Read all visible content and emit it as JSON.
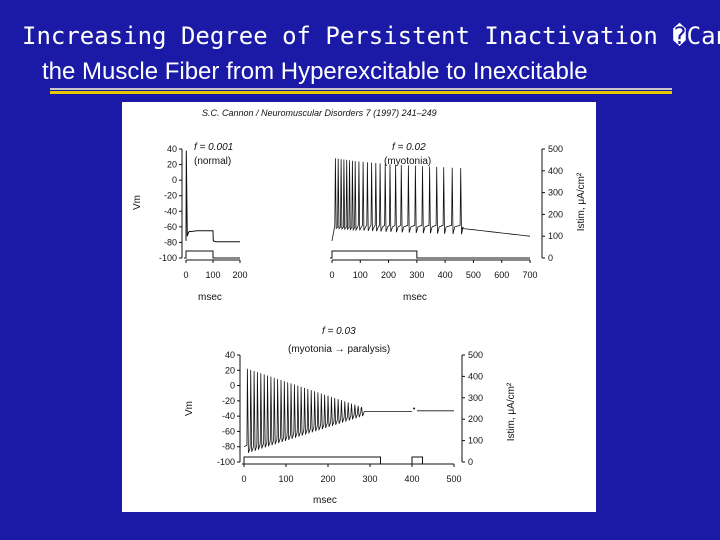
{
  "slide": {
    "title_line1": "Increasing Degree of Persistent Inactivation �Can",
    "title_line2": "the Muscle Fiber from Hyperexcitable to Inexcitable",
    "colors": {
      "background": "#1a1aa6",
      "underline": "#e8c800",
      "trace": "#111111"
    }
  },
  "figure": {
    "citation": "S.C. Cannon / Neuromuscular Disorders 7 (1997) 241–249"
  },
  "chart_data": [
    {
      "type": "line",
      "panel": "A",
      "annotation_f": "f = 0.001",
      "annotation_state": "(normal)",
      "xlabel": "msec",
      "ylabel": "Vm",
      "ylim": [
        -100,
        40
      ],
      "xlim": [
        0,
        200
      ],
      "x_ticks": [
        0,
        100,
        200
      ],
      "y_ticks": [
        40,
        20,
        0,
        -20,
        -40,
        -60,
        -80,
        -100
      ],
      "y_tick_labels": [
        "40",
        "20",
        "0",
        "-20",
        "-40",
        "-60",
        "-80",
        "-100"
      ],
      "series": [
        {
          "x": [
            0,
            1,
            3,
            5,
            8,
            12,
            20,
            40,
            60,
            80,
            100,
            101,
            110,
            200
          ],
          "y": [
            -78,
            38,
            -20,
            -72,
            -68,
            -66,
            -66,
            -65,
            -65,
            -65,
            -65,
            -78,
            -79,
            -79
          ]
        }
      ],
      "stimulus": {
        "on": [
          0,
          100
        ]
      }
    },
    {
      "type": "line",
      "panel": "B",
      "annotation_f": "f = 0.02",
      "annotation_state": "(myotonia)",
      "xlabel": "msec",
      "right_ylabel": "Istim, μA/cm²",
      "xlim": [
        0,
        700
      ],
      "x_ticks": [
        0,
        100,
        200,
        300,
        400,
        500,
        600,
        700
      ],
      "right_ylim": [
        0,
        500
      ],
      "right_y_ticks": [
        0,
        100,
        200,
        300,
        400,
        500
      ],
      "spike_times": [
        12,
        22,
        32,
        42,
        52,
        62,
        72,
        82,
        95,
        110,
        125,
        140,
        155,
        170,
        188,
        205,
        225,
        245,
        270,
        295,
        320,
        345,
        370,
        395,
        425,
        455
      ],
      "stimulus": {
        "on": [
          0,
          300
        ]
      }
    },
    {
      "type": "line",
      "panel": "C",
      "annotation_f": "f = 0.03",
      "annotation_state": "(myotonia → paralysis)",
      "xlabel": "msec",
      "ylabel": "Vm",
      "right_ylabel": "Istim, μA/cm²",
      "ylim": [
        -100,
        40
      ],
      "xlim": [
        0,
        500
      ],
      "x_ticks": [
        0,
        100,
        200,
        300,
        400,
        500
      ],
      "y_ticks": [
        40,
        20,
        0,
        -20,
        -40,
        -60,
        -80,
        -100
      ],
      "y_tick_labels": [
        "40",
        "20",
        "0",
        "-20",
        "-40",
        "-60",
        "-80",
        "-100"
      ],
      "right_ylim": [
        0,
        500
      ],
      "right_y_ticks": [
        0,
        100,
        200,
        300,
        400,
        500
      ],
      "spike_times": [
        8,
        16,
        24,
        32,
        40,
        48,
        56,
        64,
        72,
        80,
        88,
        96,
        104,
        112,
        120,
        128,
        136,
        144,
        152,
        160,
        168,
        176,
        184,
        192,
        200,
        208,
        216,
        224,
        232,
        240,
        248,
        256,
        264,
        272,
        280
      ],
      "stimulus": {
        "on": [
          0,
          325
        ],
        "second_on": [
          400,
          425
        ]
      }
    }
  ]
}
